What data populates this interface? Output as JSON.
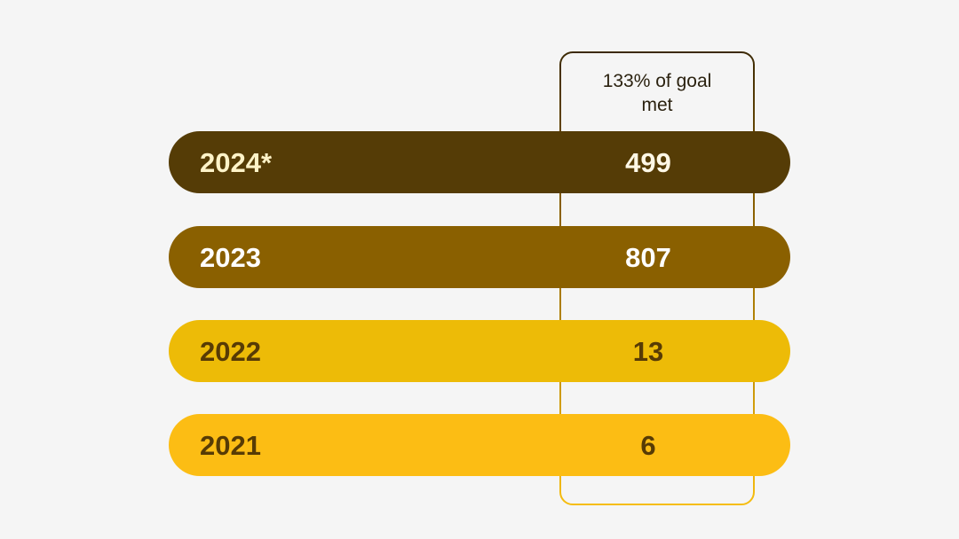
{
  "highlight": "133% of goal met",
  "rows": [
    {
      "label": "2024*",
      "value": 499
    },
    {
      "label": "2023",
      "value": 807
    },
    {
      "label": "2022",
      "value": 13
    },
    {
      "label": "2021",
      "value": 6
    }
  ]
}
